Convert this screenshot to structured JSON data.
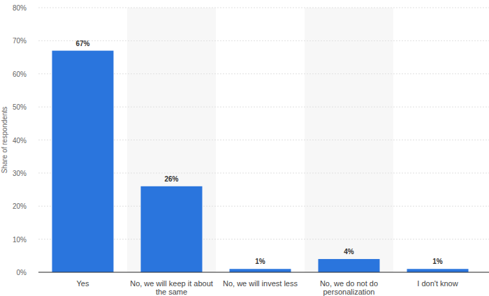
{
  "chart_data": {
    "type": "bar",
    "y_label": "Share of respondents",
    "categories": [
      "Yes",
      "No, we will keep it about the same",
      "No, we will invest less",
      "No, we do not do personalization",
      "I don't know"
    ],
    "values": [
      67,
      26,
      1,
      4,
      1
    ],
    "value_labels": [
      "67%",
      "26%",
      "1%",
      "4%",
      "1%"
    ],
    "color": "#2a75dd",
    "ylim": [
      0,
      80
    ],
    "yticks": [
      {
        "value": 0,
        "label": "0%"
      },
      {
        "value": 10,
        "label": "10%"
      },
      {
        "value": 20,
        "label": "20%"
      },
      {
        "value": 30,
        "label": "30%"
      },
      {
        "value": 40,
        "label": "40%"
      },
      {
        "value": 50,
        "label": "50%"
      },
      {
        "value": 60,
        "label": "60%"
      },
      {
        "value": 70,
        "label": "70%"
      },
      {
        "value": 80,
        "label": "80%"
      }
    ],
    "grid": true,
    "data_labels": true
  }
}
